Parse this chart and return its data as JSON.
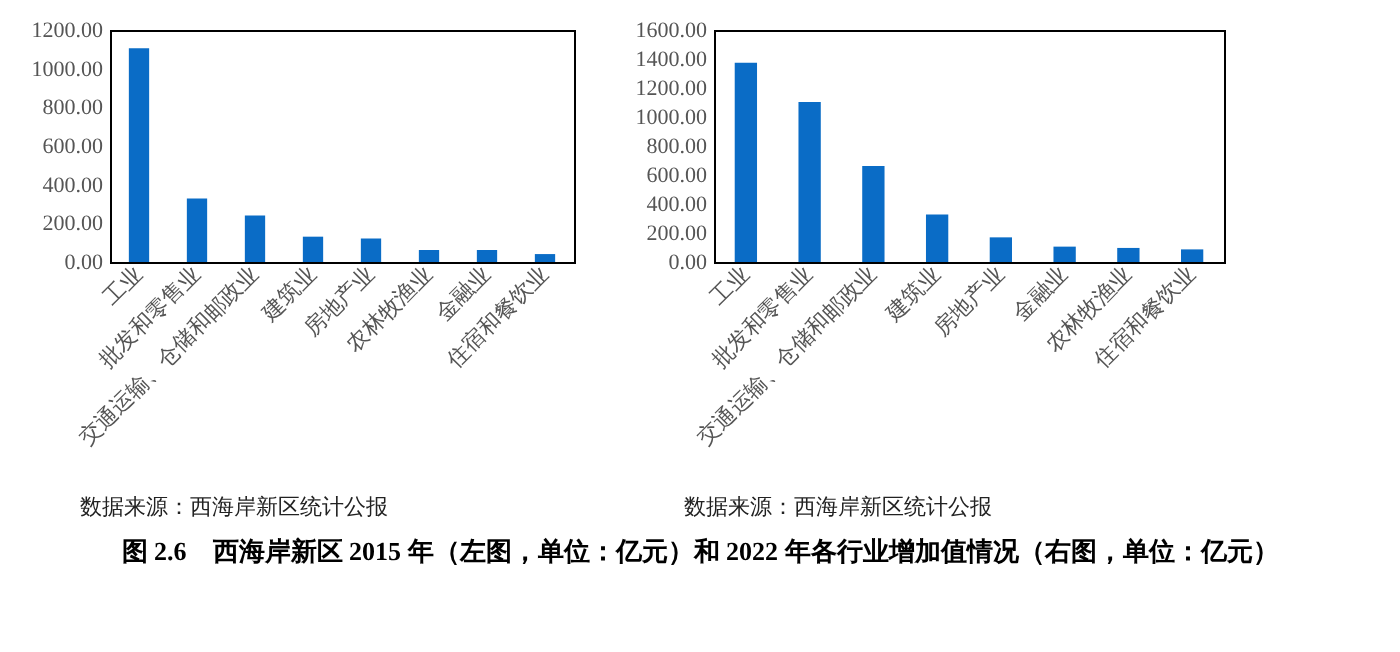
{
  "chart_data": [
    {
      "type": "bar",
      "categories": [
        "工业",
        "批发和零售业",
        "交通运输、仓储和邮政业",
        "建筑业",
        "房地产业",
        "农林牧渔业",
        "金融业",
        "住宿和餐饮业"
      ],
      "values": [
        1105,
        328,
        241,
        131,
        121,
        62,
        62,
        41
      ],
      "color": "#0a6cc6",
      "ylim": [
        0,
        1200
      ],
      "yticks": [
        {
          "value": 0,
          "label": "0.00"
        },
        {
          "value": 200,
          "label": "200.00"
        },
        {
          "value": 400,
          "label": "400.00"
        },
        {
          "value": 600,
          "label": "600.00"
        },
        {
          "value": 800,
          "label": "800.00"
        },
        {
          "value": 1000,
          "label": "1000.00"
        },
        {
          "value": 1200,
          "label": "1200.00"
        }
      ],
      "grid": false,
      "annotations": [
        "数据来源：西海岸新区统计公报"
      ]
    },
    {
      "type": "bar",
      "categories": [
        "工业",
        "批发和零售业",
        "交通运输、仓储和邮政业",
        "建筑业",
        "房地产业",
        "金融业",
        "农林牧渔业",
        "住宿和餐饮业"
      ],
      "values": [
        1375,
        1103,
        662,
        327,
        170,
        106,
        97,
        87
      ],
      "color": "#0a6cc6",
      "ylim": [
        0,
        1600
      ],
      "yticks": [
        {
          "value": 0,
          "label": "0.00"
        },
        {
          "value": 200,
          "label": "200.00"
        },
        {
          "value": 400,
          "label": "400.00"
        },
        {
          "value": 600,
          "label": "600.00"
        },
        {
          "value": 800,
          "label": "800.00"
        },
        {
          "value": 1000,
          "label": "1000.00"
        },
        {
          "value": 1200,
          "label": "1200.00"
        },
        {
          "value": 1400,
          "label": "1400.00"
        },
        {
          "value": 1600,
          "label": "1600.00"
        }
      ],
      "grid": false,
      "annotations": [
        "数据来源：西海岸新区统计公报",
        "图 2.6　西海岸新区 2015 年（左图，单位：亿元）和 2022 年各行业增加值情况（右图，单位：亿元）"
      ]
    }
  ]
}
